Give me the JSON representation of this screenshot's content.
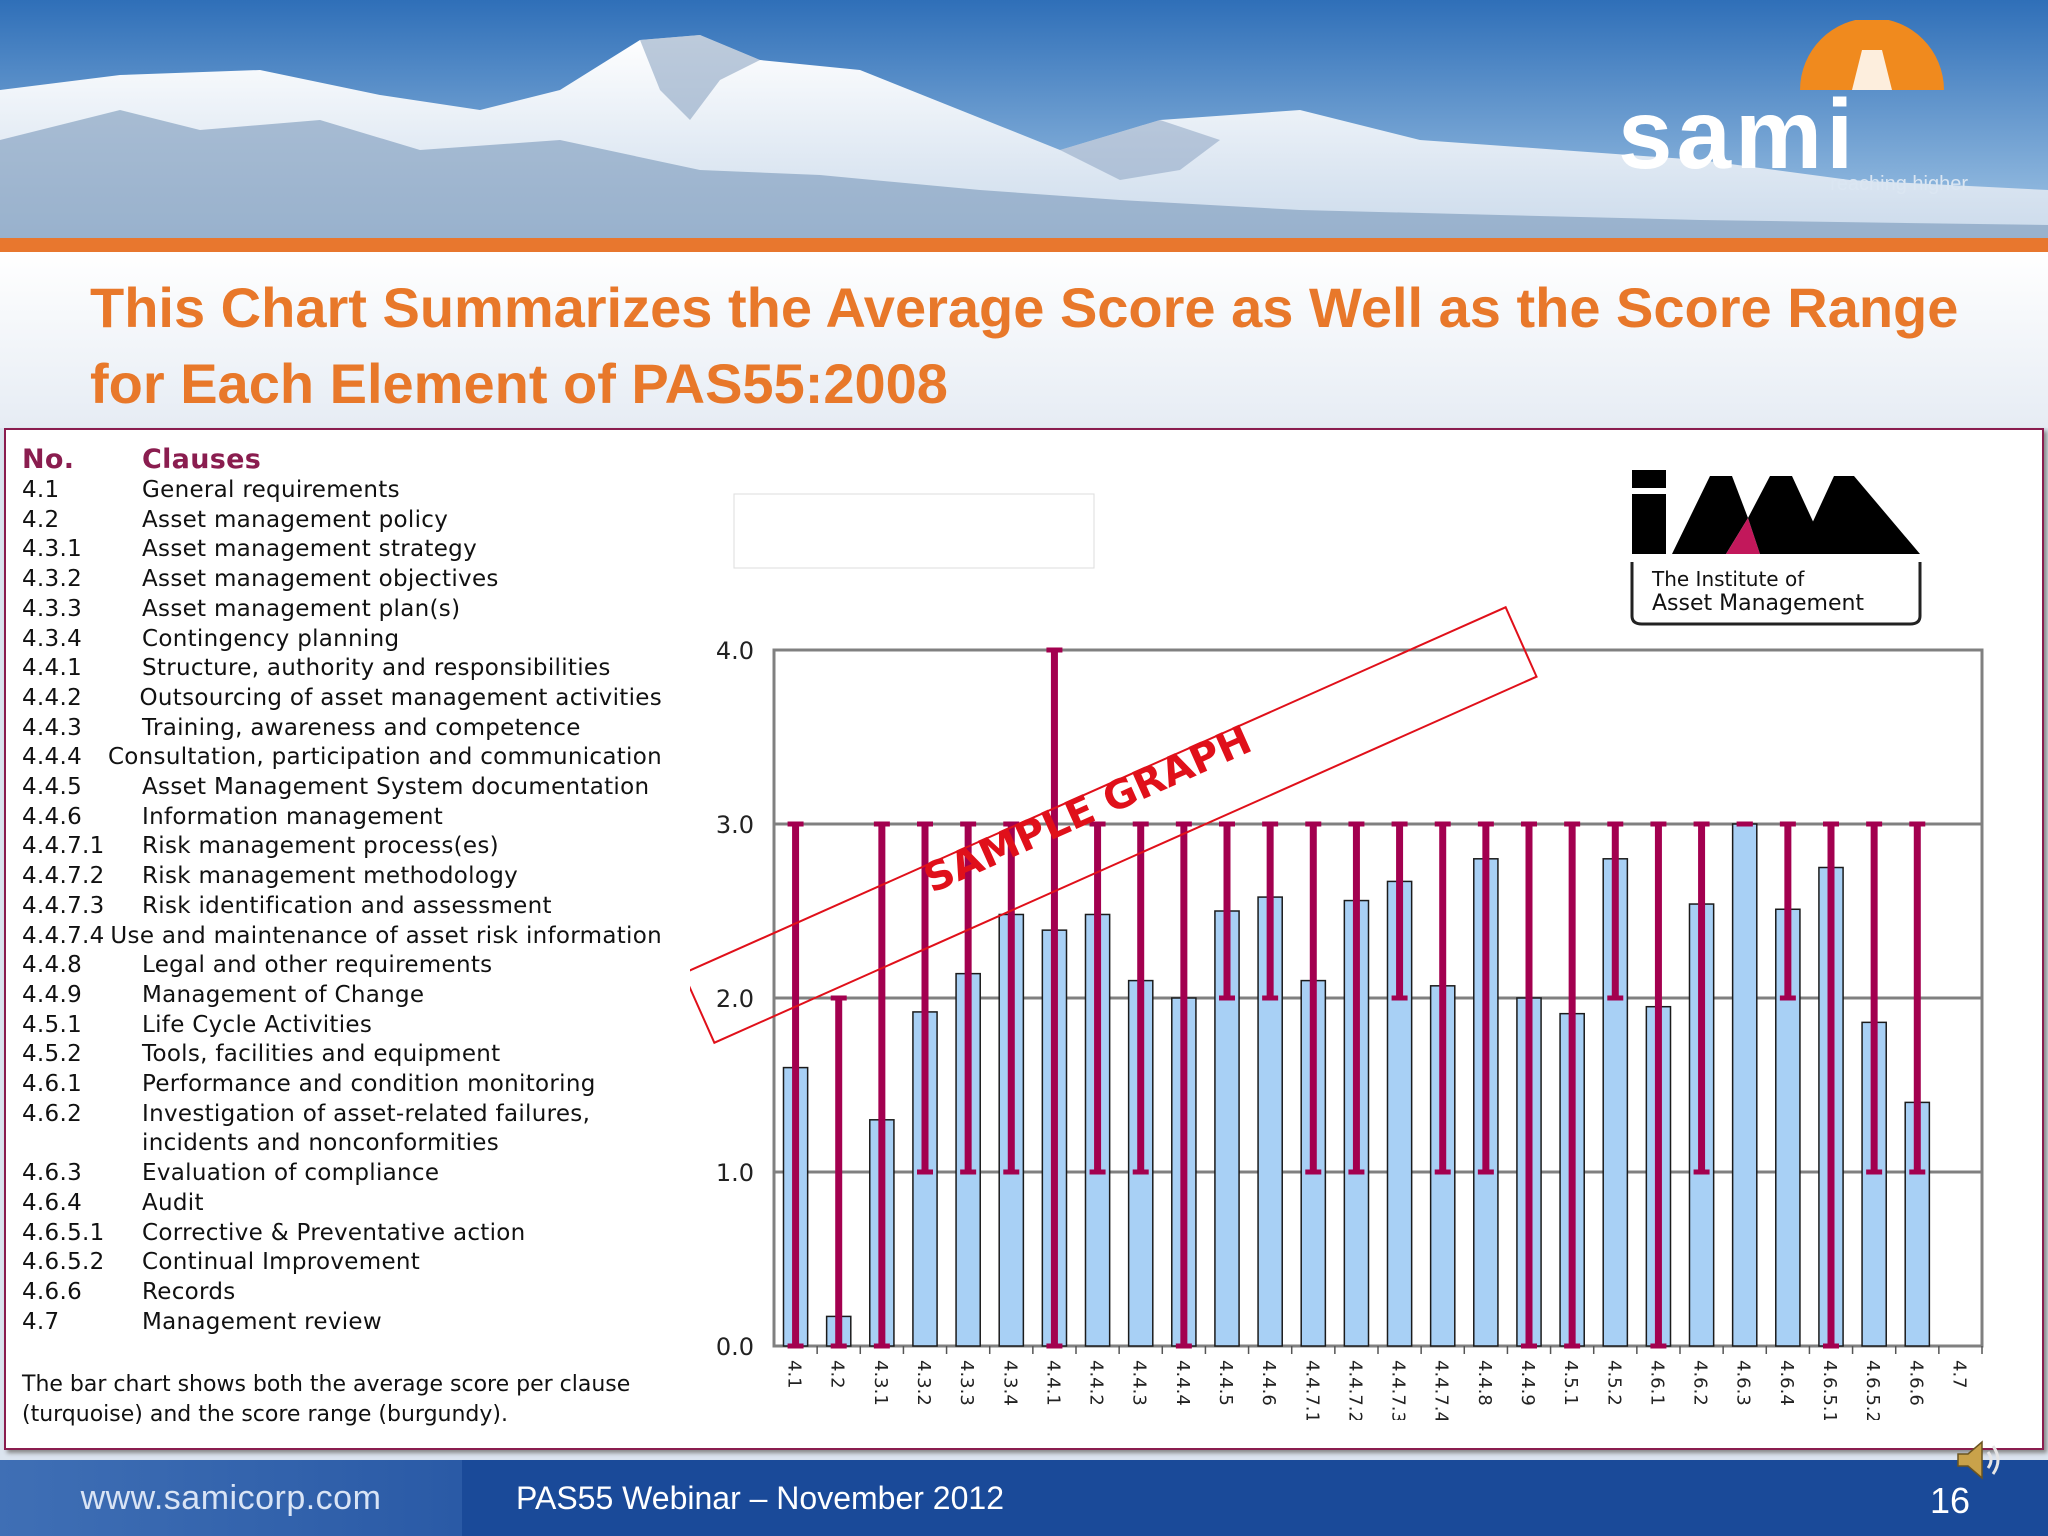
{
  "header": {
    "logo_text": "sami",
    "logo_tagline": "reaching higher",
    "title": "This Chart Summarizes the Average Score as Well as the Score Range for Each Element of PAS55:2008"
  },
  "clauses": {
    "header_no": "No.",
    "header_clause": "Clauses",
    "rows": [
      {
        "no": "4.1",
        "text": "General requirements"
      },
      {
        "no": "4.2",
        "text": "Asset management policy"
      },
      {
        "no": "4.3.1",
        "text": "Asset management strategy"
      },
      {
        "no": "4.3.2",
        "text": "Asset management objectives"
      },
      {
        "no": "4.3.3",
        "text": "Asset management plan(s)"
      },
      {
        "no": "4.3.4",
        "text": "Contingency planning"
      },
      {
        "no": "4.4.1",
        "text": "Structure, authority and responsibilities"
      },
      {
        "no": "4.4.2",
        "text": "Outsourcing of asset management activities"
      },
      {
        "no": "4.4.3",
        "text": "Training, awareness and competence"
      },
      {
        "no": "4.4.4",
        "text": "Consultation, participation and communication"
      },
      {
        "no": "4.4.5",
        "text": "Asset Management System documentation"
      },
      {
        "no": "4.4.6",
        "text": "Information management"
      },
      {
        "no": "4.4.7.1",
        "text": "Risk management process(es)"
      },
      {
        "no": "4.4.7.2",
        "text": "Risk management methodology"
      },
      {
        "no": "4.4.7.3",
        "text": "Risk identification and assessment"
      },
      {
        "no": "4.4.7.4",
        "text": "Use and maintenance of asset risk information"
      },
      {
        "no": "4.4.8",
        "text": "Legal and other requirements"
      },
      {
        "no": "4.4.9",
        "text": "Management of Change"
      },
      {
        "no": "4.5.1",
        "text": "Life Cycle Activities"
      },
      {
        "no": "4.5.2",
        "text": "Tools, facilities and equipment"
      },
      {
        "no": "4.6.1",
        "text": "Performance and condition monitoring"
      },
      {
        "no": "4.6.2",
        "text": "Investigation of asset-related failures,"
      },
      {
        "no": "",
        "text": "incidents and nonconformities"
      },
      {
        "no": "4.6.3",
        "text": "Evaluation of compliance"
      },
      {
        "no": "4.6.4",
        "text": "Audit"
      },
      {
        "no": "4.6.5.1",
        "text": "Corrective & Preventative action"
      },
      {
        "no": "4.6.5.2",
        "text": "Continual Improvement"
      },
      {
        "no": "4.6.6",
        "text": "Records"
      },
      {
        "no": "4.7",
        "text": "Management review"
      }
    ],
    "caption": "The bar chart shows both the average score per clause (turquoise) and the score range (burgundy)."
  },
  "iam_logo": {
    "text": "iAM",
    "line1": "The Institute of",
    "line2": "Asset Management"
  },
  "chart_data": {
    "type": "bar",
    "title": "",
    "xlabel": "",
    "ylabel": "",
    "ylim": [
      0,
      4
    ],
    "yticks": [
      "0.0",
      "1.0",
      "2.0",
      "3.0",
      "4.0"
    ],
    "grid": true,
    "watermark": "SAMPLE GRAPH",
    "categories": [
      "4.1",
      "4.2",
      "4.3.1",
      "4.3.2",
      "4.3.3",
      "4.3.4",
      "4.4.1",
      "4.4.2",
      "4.4.3",
      "4.4.4",
      "4.4.5",
      "4.4.6",
      "4.4.7.1",
      "4.4.7.2",
      "4.4.7.3",
      "4.4.7.4",
      "4.4.8",
      "4.4.9",
      "4.5.1",
      "4.5.2",
      "4.6.1",
      "4.6.2",
      "4.6.3",
      "4.6.4",
      "4.6.5.1",
      "4.6.5.2",
      "4.6.6",
      "4.7"
    ],
    "series": [
      {
        "values": [
          1.6,
          0.17,
          1.3,
          1.92,
          2.14,
          2.48,
          2.39,
          2.48,
          2.1,
          2.0,
          2.5,
          2.58,
          2.1,
          2.56,
          2.67,
          2.07,
          2.8,
          2.0,
          1.91,
          2.8,
          1.95,
          2.54,
          3.0,
          2.51,
          2.75,
          1.86,
          1.4,
          null
        ],
        "color": "#a8d0f5"
      },
      {
        "range_min": [
          0,
          0,
          0,
          1,
          1,
          1,
          0,
          1,
          1,
          0,
          2,
          2,
          1,
          1,
          2,
          1,
          1,
          0,
          0,
          2,
          0,
          1,
          3,
          2,
          0,
          1,
          1,
          null
        ],
        "range_max": [
          3,
          2,
          3,
          3,
          3,
          3,
          4,
          3,
          3,
          3,
          3,
          3,
          3,
          3,
          3,
          3,
          3,
          3,
          3,
          3,
          3,
          3,
          3,
          3,
          3,
          3,
          3,
          null
        ],
        "color": "#a3004f"
      }
    ]
  },
  "footer": {
    "url": "www.samicorp.com",
    "text": "PAS55 Webinar – November 2012",
    "page": "16"
  }
}
